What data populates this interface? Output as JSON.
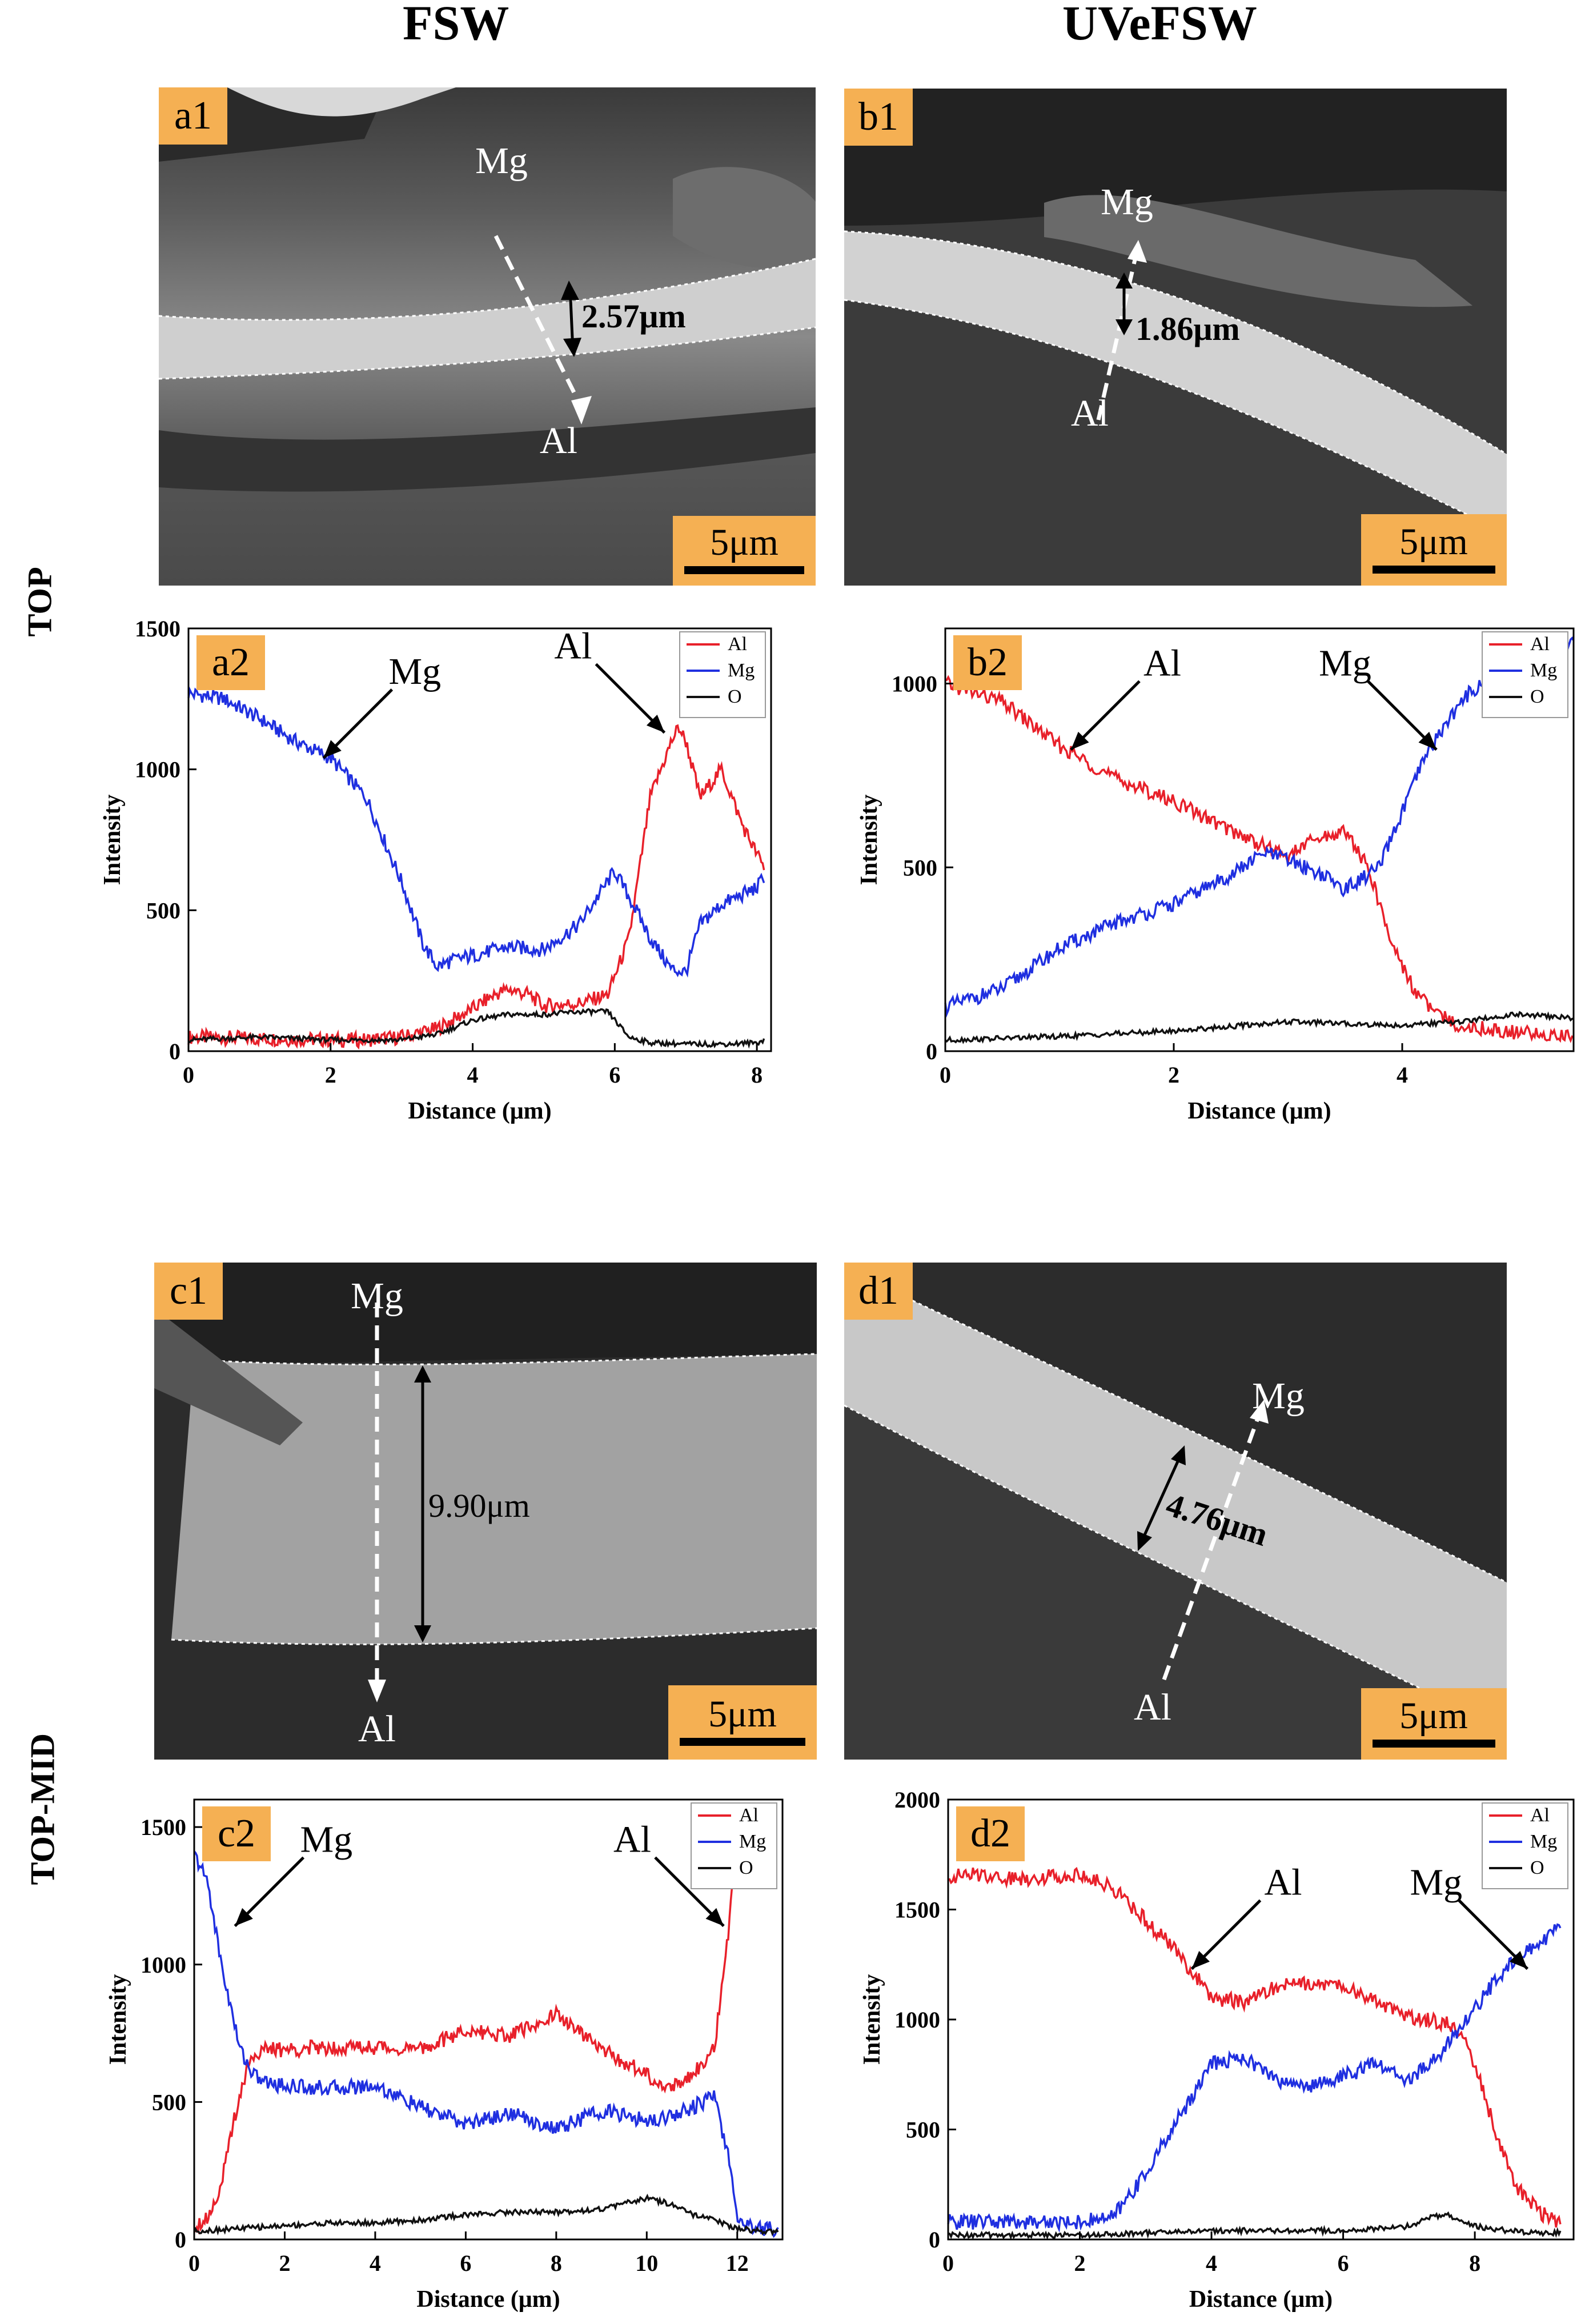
{
  "headers": {
    "fsw": "FSW",
    "uvefsw": "UVeFSW",
    "top": "TOP",
    "top_mid": "TOP-MID"
  },
  "micrographs": [
    {
      "id": "a1",
      "label": "a1",
      "scale_bar": "5μm",
      "thickness": "2.57μm",
      "start": "Mg",
      "end": "Al"
    },
    {
      "id": "b1",
      "label": "b1",
      "scale_bar": "5μm",
      "thickness": "1.86μm",
      "start": "Al",
      "end": "Mg"
    },
    {
      "id": "c1",
      "label": "c1",
      "scale_bar": "5μm",
      "thickness": "9.90μm",
      "start": "Mg",
      "end": "Al"
    },
    {
      "id": "d1",
      "label": "d1",
      "scale_bar": "5μm",
      "thickness": "4.76μm",
      "start": "Al",
      "end": "Mg"
    }
  ],
  "chart_data": [
    {
      "id": "a2",
      "type": "line",
      "label": "a2",
      "xlabel": "Distance (μm)",
      "ylabel": "Intensity",
      "xlim": [
        0,
        8.2
      ],
      "ylim": [
        0,
        1500
      ],
      "xticks": [
        0,
        2,
        4,
        6,
        8
      ],
      "yticks": [
        0,
        500,
        1000,
        1500
      ],
      "legend": [
        "Al",
        "Mg",
        "O"
      ],
      "legend_position": "top-right",
      "annotations": [
        {
          "text": "Mg",
          "target": [
            1.9,
            1040
          ]
        },
        {
          "text": "Al",
          "target": [
            6.7,
            1130
          ]
        }
      ],
      "series": [
        {
          "name": "Al",
          "color": "#e8202a",
          "x": [
            0,
            1,
            2,
            2.5,
            3,
            3.5,
            4,
            4.3,
            4.5,
            4.8,
            5,
            5.5,
            5.9,
            6.2,
            6.5,
            6.8,
            6.9,
            7,
            7.2,
            7.5,
            7.8,
            8,
            8.1
          ],
          "y": [
            50,
            45,
            40,
            40,
            50,
            80,
            150,
            200,
            220,
            200,
            160,
            170,
            200,
            400,
            900,
            1100,
            1150,
            1100,
            900,
            1000,
            800,
            700,
            650
          ]
        },
        {
          "name": "Mg",
          "color": "#1f2fe0",
          "x": [
            0,
            0.5,
            1,
            1.5,
            2,
            2.5,
            3,
            3.3,
            3.5,
            3.7,
            4,
            4.5,
            5,
            5.5,
            6,
            6.3,
            6.5,
            6.8,
            7,
            7.2,
            7.5,
            8,
            8.1
          ],
          "y": [
            1270,
            1250,
            1180,
            1100,
            1040,
            900,
            600,
            380,
            300,
            320,
            340,
            370,
            360,
            450,
            640,
            500,
            400,
            290,
            280,
            450,
            520,
            580,
            620
          ]
        },
        {
          "name": "O",
          "color": "#111111",
          "x": [
            0,
            1,
            2,
            3,
            3.5,
            4,
            4.5,
            5,
            5.5,
            5.9,
            6.2,
            6.5,
            7,
            7.5,
            8,
            8.1
          ],
          "y": [
            40,
            50,
            40,
            40,
            60,
            110,
            130,
            130,
            140,
            140,
            50,
            30,
            25,
            25,
            30,
            40
          ]
        }
      ]
    },
    {
      "id": "b2",
      "type": "line",
      "label": "b2",
      "xlabel": "Distance (μm)",
      "ylabel": "Intensity",
      "xlim": [
        0,
        5.5
      ],
      "ylim": [
        0,
        1150
      ],
      "xticks": [
        0,
        2,
        4
      ],
      "yticks": [
        0,
        500,
        1000
      ],
      "legend": [
        "Al",
        "Mg",
        "O"
      ],
      "legend_position": "top-right",
      "annotations": [
        {
          "text": "Al",
          "target": [
            1.1,
            820
          ]
        },
        {
          "text": "Mg",
          "target": [
            4.3,
            820
          ]
        }
      ],
      "series": [
        {
          "name": "Al",
          "color": "#e8202a",
          "x": [
            0,
            0.5,
            1,
            1.5,
            2,
            2.5,
            3,
            3.2,
            3.5,
            3.7,
            3.9,
            4.1,
            4.3,
            4.5,
            5,
            5.5
          ],
          "y": [
            1000,
            950,
            830,
            740,
            680,
            600,
            530,
            570,
            600,
            500,
            300,
            170,
            100,
            70,
            50,
            40
          ]
        },
        {
          "name": "Mg",
          "color": "#1f2fe0",
          "x": [
            0,
            0.5,
            1,
            1.5,
            2,
            2.5,
            2.8,
            3,
            3.3,
            3.5,
            3.8,
            4,
            4.2,
            4.4,
            4.6,
            5,
            5.5
          ],
          "y": [
            120,
            170,
            280,
            350,
            400,
            480,
            540,
            520,
            480,
            440,
            500,
            650,
            800,
            900,
            980,
            1050,
            1120
          ]
        },
        {
          "name": "O",
          "color": "#111111",
          "x": [
            0,
            1,
            2,
            3,
            4,
            4.5,
            5,
            5.5
          ],
          "y": [
            30,
            40,
            55,
            80,
            70,
            80,
            100,
            90
          ]
        }
      ]
    },
    {
      "id": "c2",
      "type": "line",
      "label": "c2",
      "xlabel": "Distance (μm)",
      "ylabel": "Intensity",
      "xlim": [
        0,
        13
      ],
      "ylim": [
        0,
        1600
      ],
      "xticks": [
        0,
        2,
        4,
        6,
        8,
        10,
        12
      ],
      "yticks": [
        0,
        500,
        1000,
        1500
      ],
      "legend": [
        "Al",
        "Mg",
        "O"
      ],
      "legend_position": "top-right",
      "annotations": [
        {
          "text": "Mg",
          "target": [
            0.9,
            1140
          ]
        },
        {
          "text": "Al",
          "target": [
            11.7,
            1140
          ]
        }
      ],
      "series": [
        {
          "name": "Al",
          "color": "#e8202a",
          "x": [
            0,
            0.3,
            0.6,
            0.9,
            1.2,
            1.5,
            2,
            3,
            4,
            5,
            6,
            7,
            8,
            9,
            10,
            10.5,
            11,
            11.5,
            11.8,
            12
          ],
          "y": [
            50,
            80,
            200,
            450,
            650,
            690,
            690,
            700,
            700,
            690,
            760,
            740,
            820,
            690,
            600,
            550,
            600,
            700,
            1100,
            1500
          ]
        },
        {
          "name": "Mg",
          "color": "#1f2fe0",
          "x": [
            0,
            0.3,
            0.6,
            1,
            1.3,
            1.6,
            2,
            3,
            4,
            5,
            6,
            7,
            8,
            9,
            10,
            10.5,
            11,
            11.5,
            11.8,
            12,
            12.3,
            12.6,
            12.9
          ],
          "y": [
            1400,
            1300,
            1000,
            700,
            600,
            570,
            560,
            550,
            560,
            480,
            420,
            460,
            400,
            470,
            430,
            450,
            480,
            520,
            300,
            80,
            50,
            40,
            40
          ]
        },
        {
          "name": "O",
          "color": "#111111",
          "x": [
            0,
            1,
            2,
            3,
            4,
            5,
            6,
            7,
            8,
            9,
            10,
            10.5,
            11,
            11.5,
            12,
            12.5,
            12.9
          ],
          "y": [
            30,
            40,
            50,
            60,
            60,
            70,
            90,
            100,
            100,
            110,
            150,
            130,
            90,
            70,
            40,
            30,
            30
          ]
        }
      ]
    },
    {
      "id": "d2",
      "type": "line",
      "label": "d2",
      "xlabel": "Distance (μm)",
      "ylabel": "Intensity",
      "xlim": [
        0,
        9.5
      ],
      "ylim": [
        0,
        2000
      ],
      "xticks": [
        0,
        2,
        4,
        6,
        8
      ],
      "yticks": [
        0,
        500,
        1000,
        1500,
        2000
      ],
      "legend": [
        "Al",
        "Mg",
        "O"
      ],
      "legend_position": "top-right",
      "annotations": [
        {
          "text": "Al",
          "target": [
            3.7,
            1230
          ]
        },
        {
          "text": "Mg",
          "target": [
            8.8,
            1230
          ]
        }
      ],
      "series": [
        {
          "name": "Al",
          "color": "#e8202a",
          "x": [
            0,
            0.5,
            1,
            1.5,
            2,
            2.5,
            3,
            3.5,
            4,
            4.5,
            5,
            5.5,
            6,
            6.5,
            7,
            7.5,
            7.8,
            8,
            8.3,
            8.6,
            9,
            9.3
          ],
          "y": [
            1650,
            1660,
            1640,
            1650,
            1660,
            1600,
            1450,
            1300,
            1100,
            1080,
            1150,
            1170,
            1150,
            1080,
            1010,
            990,
            950,
            800,
            500,
            250,
            120,
            80
          ]
        },
        {
          "name": "Mg",
          "color": "#1f2fe0",
          "x": [
            0,
            0.5,
            1,
            1.5,
            2,
            2.5,
            3,
            3.5,
            4,
            4.5,
            5,
            5.5,
            6,
            6.5,
            7,
            7.5,
            8,
            8.5,
            9,
            9.3
          ],
          "y": [
            80,
            80,
            80,
            80,
            80,
            100,
            300,
            550,
            800,
            830,
            720,
            700,
            740,
            800,
            720,
            850,
            1050,
            1250,
            1350,
            1420
          ]
        },
        {
          "name": "O",
          "color": "#111111",
          "x": [
            0,
            1,
            2,
            3,
            4,
            5,
            6,
            7,
            7.3,
            7.6,
            8,
            8.5,
            9,
            9.3
          ],
          "y": [
            20,
            20,
            20,
            30,
            40,
            40,
            40,
            60,
            100,
            110,
            60,
            40,
            30,
            30
          ]
        }
      ]
    }
  ]
}
